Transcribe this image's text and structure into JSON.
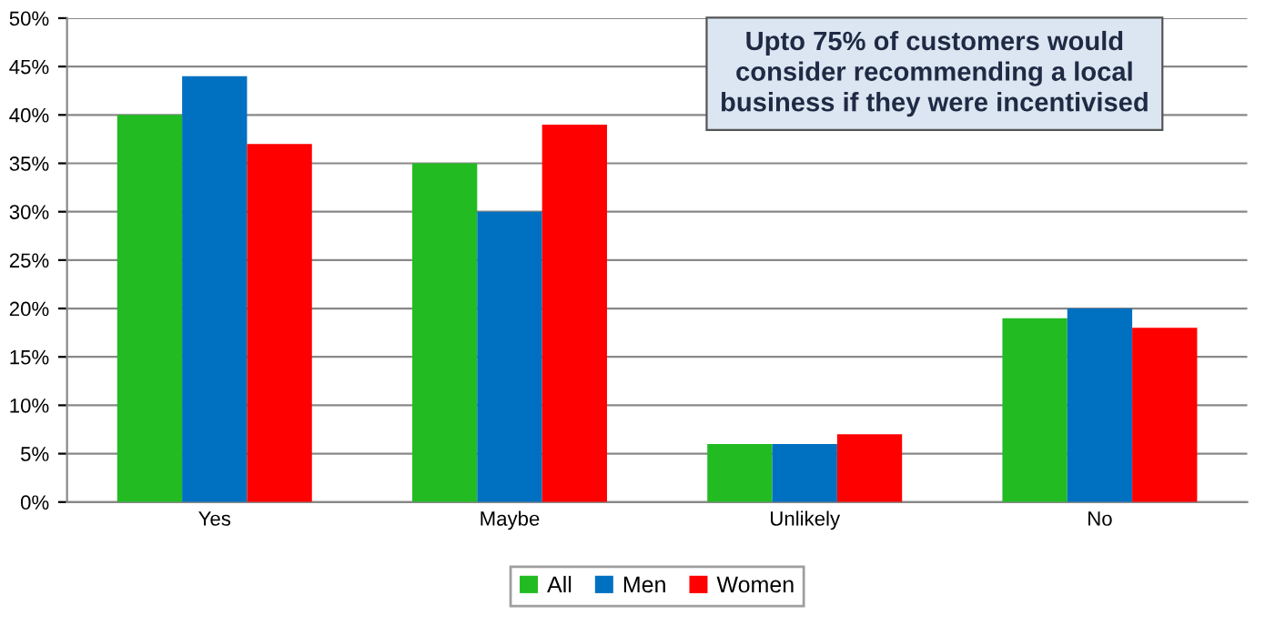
{
  "chart_data": {
    "type": "bar",
    "categories": [
      "Yes",
      "Maybe",
      "Unlikely",
      "No"
    ],
    "series": [
      {
        "name": "All",
        "color": "#22bb22",
        "values": [
          40,
          35,
          6,
          19
        ]
      },
      {
        "name": "Men",
        "color": "#0070c0",
        "values": [
          44,
          30,
          6,
          20
        ]
      },
      {
        "name": "Women",
        "color": "#ff0000",
        "values": [
          37,
          39,
          7,
          18
        ]
      }
    ],
    "ylim": [
      0,
      50
    ],
    "yticks": [
      {
        "value": 0,
        "label": "0%"
      },
      {
        "value": 5,
        "label": "5%"
      },
      {
        "value": 10,
        "label": "10%"
      },
      {
        "value": 15,
        "label": "15%"
      },
      {
        "value": 20,
        "label": "20%"
      },
      {
        "value": 25,
        "label": "25%"
      },
      {
        "value": 30,
        "label": "30%"
      },
      {
        "value": 35,
        "label": "35%"
      },
      {
        "value": 40,
        "label": "40%"
      },
      {
        "value": 45,
        "label": "45%"
      },
      {
        "value": 50,
        "label": "50%"
      }
    ],
    "grid": "y",
    "legend": "bottom",
    "annotations": [
      "Upto 75% of customers would\nconsider recommending a local\nbusiness if they were incentivised"
    ]
  }
}
